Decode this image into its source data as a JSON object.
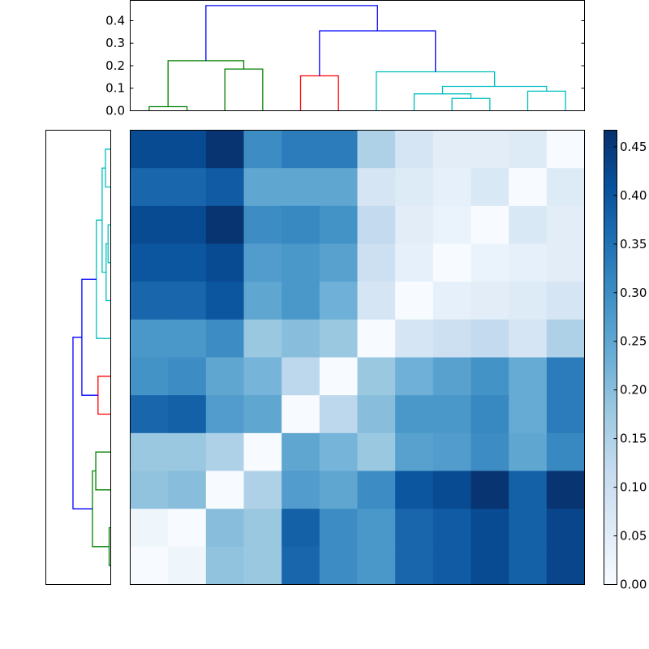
{
  "chart_data": [
    {
      "type": "heatmap",
      "title": "",
      "xlabel": "",
      "ylabel": "",
      "rows": 12,
      "cols": 12,
      "colormap": "Blues",
      "vmin": 0.0,
      "vmax": 0.467,
      "values": [
        [
          0.42,
          0.42,
          0.46,
          0.3,
          0.33,
          0.33,
          0.15,
          0.08,
          0.05,
          0.05,
          0.06,
          0.0
        ],
        [
          0.37,
          0.37,
          0.39,
          0.25,
          0.25,
          0.25,
          0.08,
          0.06,
          0.04,
          0.07,
          0.0,
          0.06
        ],
        [
          0.42,
          0.42,
          0.46,
          0.3,
          0.31,
          0.29,
          0.12,
          0.05,
          0.03,
          0.0,
          0.07,
          0.05
        ],
        [
          0.4,
          0.4,
          0.42,
          0.27,
          0.28,
          0.26,
          0.1,
          0.04,
          0.0,
          0.03,
          0.04,
          0.05
        ],
        [
          0.37,
          0.37,
          0.4,
          0.25,
          0.28,
          0.23,
          0.08,
          0.0,
          0.04,
          0.05,
          0.06,
          0.08
        ],
        [
          0.28,
          0.28,
          0.3,
          0.18,
          0.2,
          0.18,
          0.0,
          0.08,
          0.1,
          0.12,
          0.08,
          0.15
        ],
        [
          0.29,
          0.3,
          0.25,
          0.22,
          0.13,
          0.0,
          0.18,
          0.23,
          0.26,
          0.29,
          0.24,
          0.33
        ],
        [
          0.37,
          0.38,
          0.27,
          0.25,
          0.0,
          0.13,
          0.2,
          0.28,
          0.28,
          0.31,
          0.24,
          0.33
        ],
        [
          0.18,
          0.18,
          0.15,
          0.0,
          0.25,
          0.22,
          0.18,
          0.26,
          0.27,
          0.3,
          0.25,
          0.31
        ],
        [
          0.19,
          0.2,
          0.0,
          0.15,
          0.27,
          0.25,
          0.3,
          0.4,
          0.42,
          0.46,
          0.38,
          0.46
        ],
        [
          0.02,
          0.0,
          0.2,
          0.18,
          0.38,
          0.3,
          0.28,
          0.37,
          0.39,
          0.42,
          0.38,
          0.43
        ],
        [
          0.0,
          0.02,
          0.19,
          0.18,
          0.37,
          0.3,
          0.28,
          0.37,
          0.39,
          0.42,
          0.38,
          0.43
        ]
      ],
      "colorbar": {
        "ticks": [
          0.0,
          0.05,
          0.1,
          0.15,
          0.2,
          0.25,
          0.3,
          0.35,
          0.4,
          0.45
        ],
        "tick_labels": [
          "0.00",
          "0.05",
          "0.10",
          "0.15",
          "0.20",
          "0.25",
          "0.30",
          "0.35",
          "0.40",
          "0.45"
        ],
        "range": [
          0.0,
          0.467
        ]
      },
      "x_ticks": [],
      "y_ticks": []
    },
    {
      "type": "dendrogram",
      "orientation": "top",
      "ylim": [
        0.0,
        0.49
      ],
      "yticks": [
        0.0,
        0.1,
        0.2,
        0.3,
        0.4
      ],
      "ytick_labels": [
        "0.0",
        "0.1",
        "0.2",
        "0.3",
        "0.4"
      ],
      "links": [
        {
          "left": 0,
          "right": 1,
          "height": 0.018,
          "color": "#008000"
        },
        {
          "left": 2,
          "right": 3,
          "height": 0.185,
          "color": "#008000"
        },
        {
          "left": 0.5,
          "right": 2.5,
          "height": 0.222,
          "color": "#008000",
          "left_base": 0.018,
          "right_base": 0.185
        },
        {
          "left": 4,
          "right": 5,
          "height": 0.155,
          "color": "#ff0000"
        },
        {
          "left": 8,
          "right": 9,
          "height": 0.055,
          "color": "#00bfbf"
        },
        {
          "left": 7,
          "right": 8.5,
          "height": 0.075,
          "color": "#00bfbf",
          "left_base": 0.0,
          "right_base": 0.055
        },
        {
          "left": 10,
          "right": 11,
          "height": 0.087,
          "color": "#00bfbf"
        },
        {
          "left": 7.75,
          "right": 10.5,
          "height": 0.108,
          "color": "#00bfbf",
          "left_base": 0.075,
          "right_base": 0.087
        },
        {
          "left": 6,
          "right": 9.125,
          "height": 0.173,
          "color": "#00bfbf",
          "left_base": 0.0,
          "right_base": 0.108
        },
        {
          "left": 4.5,
          "right": 7.5625,
          "height": 0.355,
          "color": "#0000ff",
          "left_base": 0.155,
          "right_base": 0.173
        },
        {
          "left": 1.5,
          "right": 6.03125,
          "height": 0.467,
          "color": "#0000ff",
          "left_base": 0.222,
          "right_base": 0.355
        }
      ]
    },
    {
      "type": "dendrogram",
      "orientation": "left",
      "xlim": [
        0.0,
        0.49
      ],
      "links": [
        {
          "a": 0,
          "b": 1,
          "height": 0.04,
          "color": "#00bfbf"
        },
        {
          "a": 2,
          "b": 3,
          "height": 0.02,
          "color": "#00bfbf"
        },
        {
          "a": 2.5,
          "b": 4,
          "height": 0.035,
          "color": "#00bfbf",
          "a_base": 0.02,
          "b_base": 0.0
        },
        {
          "a": 0.5,
          "b": 3.25,
          "height": 0.065,
          "color": "#00bfbf",
          "a_base": 0.04,
          "b_base": 0.035
        },
        {
          "a": 1.875,
          "b": 5,
          "height": 0.108,
          "color": "#00bfbf",
          "a_base": 0.065,
          "b_base": 0.0
        },
        {
          "a": 6,
          "b": 7,
          "height": 0.096,
          "color": "#ff0000"
        },
        {
          "a": 3.4375,
          "b": 6.5,
          "height": 0.218,
          "color": "#0000ff",
          "a_base": 0.108,
          "b_base": 0.096
        },
        {
          "a": 8,
          "b": 9,
          "height": 0.113,
          "color": "#008000"
        },
        {
          "a": 10,
          "b": 11,
          "height": 0.012,
          "color": "#008000"
        },
        {
          "a": 8.5,
          "b": 10.5,
          "height": 0.138,
          "color": "#008000",
          "a_base": 0.113,
          "b_base": 0.012
        },
        {
          "a": 4.96875,
          "b": 9.5,
          "height": 0.285,
          "color": "#0000ff",
          "a_base": 0.218,
          "b_base": 0.138
        }
      ]
    }
  ]
}
